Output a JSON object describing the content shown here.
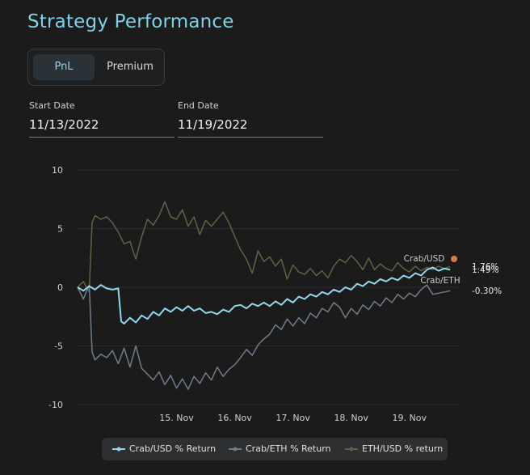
{
  "title": "Strategy Performance",
  "toggle": {
    "options": [
      "PnL",
      "Premium"
    ],
    "selected": "PnL"
  },
  "start_date": {
    "label": "Start Date",
    "value": "11/13/2022"
  },
  "end_date": {
    "label": "End Date",
    "value": "11/19/2022"
  },
  "end_labels": {
    "crab_usd_name": "Crab/USD",
    "crab_eth_name": "Crab/ETH"
  },
  "chart_data": {
    "type": "line",
    "x_tick_labels": [
      "15. Nov",
      "16. Nov",
      "17. Nov",
      "18. Nov",
      "19. Nov"
    ],
    "x_tick_positions_days": [
      1,
      2,
      3,
      4,
      5
    ],
    "x_range_days": [
      -0.7,
      5.85
    ],
    "y_ticks": [
      10,
      5,
      0,
      -5,
      -10
    ],
    "ylim": [
      -10,
      10
    ],
    "grid": true,
    "legend_placement": "bottom",
    "end_value_labels": [
      "1.76%",
      "1.49%",
      "-0.30%"
    ],
    "series": [
      {
        "name": "Crab/USD % Return",
        "color": "#8fd8ee",
        "points": [
          [
            -0.7,
            0
          ],
          [
            -0.6,
            -0.3
          ],
          [
            -0.5,
            0.1
          ],
          [
            -0.4,
            -0.2
          ],
          [
            -0.3,
            0.2
          ],
          [
            -0.2,
            -0.1
          ],
          [
            -0.1,
            -0.2
          ],
          [
            0.0,
            -0.1
          ],
          [
            0.05,
            -2.9
          ],
          [
            0.1,
            -3.1
          ],
          [
            0.2,
            -2.6
          ],
          [
            0.3,
            -3.0
          ],
          [
            0.4,
            -2.4
          ],
          [
            0.5,
            -2.7
          ],
          [
            0.6,
            -2.1
          ],
          [
            0.7,
            -2.4
          ],
          [
            0.8,
            -1.8
          ],
          [
            0.9,
            -2.1
          ],
          [
            1.0,
            -1.7
          ],
          [
            1.1,
            -2.0
          ],
          [
            1.2,
            -1.6
          ],
          [
            1.3,
            -2.0
          ],
          [
            1.4,
            -1.8
          ],
          [
            1.5,
            -2.2
          ],
          [
            1.6,
            -2.1
          ],
          [
            1.7,
            -2.3
          ],
          [
            1.8,
            -1.9
          ],
          [
            1.9,
            -2.1
          ],
          [
            2.0,
            -1.6
          ],
          [
            2.1,
            -1.5
          ],
          [
            2.2,
            -1.8
          ],
          [
            2.3,
            -1.4
          ],
          [
            2.4,
            -1.6
          ],
          [
            2.5,
            -1.3
          ],
          [
            2.6,
            -1.6
          ],
          [
            2.7,
            -1.2
          ],
          [
            2.8,
            -1.5
          ],
          [
            2.9,
            -1.0
          ],
          [
            3.0,
            -1.3
          ],
          [
            3.1,
            -0.8
          ],
          [
            3.2,
            -1.0
          ],
          [
            3.3,
            -0.6
          ],
          [
            3.4,
            -0.8
          ],
          [
            3.5,
            -0.4
          ],
          [
            3.6,
            -0.6
          ],
          [
            3.7,
            -0.2
          ],
          [
            3.8,
            -0.4
          ],
          [
            3.9,
            0.0
          ],
          [
            4.0,
            -0.2
          ],
          [
            4.1,
            0.3
          ],
          [
            4.2,
            0.1
          ],
          [
            4.3,
            0.5
          ],
          [
            4.4,
            0.3
          ],
          [
            4.5,
            0.7
          ],
          [
            4.6,
            0.5
          ],
          [
            4.7,
            0.8
          ],
          [
            4.8,
            0.6
          ],
          [
            4.9,
            1.0
          ],
          [
            5.0,
            0.8
          ],
          [
            5.1,
            1.2
          ],
          [
            5.2,
            1.0
          ],
          [
            5.3,
            1.5
          ],
          [
            5.4,
            1.7
          ],
          [
            5.5,
            1.4
          ],
          [
            5.6,
            1.6
          ],
          [
            5.7,
            1.49
          ]
        ]
      },
      {
        "name": "Crab/ETH % Return",
        "color": "#6e7c8c",
        "points": [
          [
            -0.7,
            0
          ],
          [
            -0.6,
            -1.0
          ],
          [
            -0.5,
            0.2
          ],
          [
            -0.45,
            -5.5
          ],
          [
            -0.4,
            -6.2
          ],
          [
            -0.3,
            -5.7
          ],
          [
            -0.2,
            -6.0
          ],
          [
            -0.1,
            -5.4
          ],
          [
            0.0,
            -6.5
          ],
          [
            0.1,
            -5.2
          ],
          [
            0.2,
            -6.8
          ],
          [
            0.3,
            -5.0
          ],
          [
            0.4,
            -6.9
          ],
          [
            0.5,
            -7.4
          ],
          [
            0.6,
            -7.9
          ],
          [
            0.7,
            -7.2
          ],
          [
            0.8,
            -8.3
          ],
          [
            0.9,
            -7.5
          ],
          [
            1.0,
            -8.6
          ],
          [
            1.1,
            -7.8
          ],
          [
            1.2,
            -8.7
          ],
          [
            1.3,
            -7.6
          ],
          [
            1.4,
            -8.2
          ],
          [
            1.5,
            -7.3
          ],
          [
            1.6,
            -7.9
          ],
          [
            1.7,
            -6.8
          ],
          [
            1.8,
            -7.6
          ],
          [
            1.9,
            -7.0
          ],
          [
            2.0,
            -6.6
          ],
          [
            2.1,
            -6.0
          ],
          [
            2.2,
            -5.3
          ],
          [
            2.3,
            -5.8
          ],
          [
            2.4,
            -4.9
          ],
          [
            2.5,
            -4.4
          ],
          [
            2.6,
            -4.0
          ],
          [
            2.7,
            -3.2
          ],
          [
            2.8,
            -3.6
          ],
          [
            2.9,
            -2.7
          ],
          [
            3.0,
            -3.3
          ],
          [
            3.1,
            -2.6
          ],
          [
            3.2,
            -3.1
          ],
          [
            3.3,
            -2.2
          ],
          [
            3.4,
            -2.6
          ],
          [
            3.5,
            -1.8
          ],
          [
            3.6,
            -2.1
          ],
          [
            3.7,
            -1.3
          ],
          [
            3.8,
            -1.7
          ],
          [
            3.9,
            -2.6
          ],
          [
            4.0,
            -1.8
          ],
          [
            4.1,
            -2.3
          ],
          [
            4.2,
            -1.5
          ],
          [
            4.3,
            -1.9
          ],
          [
            4.4,
            -1.2
          ],
          [
            4.5,
            -1.6
          ],
          [
            4.6,
            -0.9
          ],
          [
            4.7,
            -1.3
          ],
          [
            4.8,
            -0.6
          ],
          [
            4.9,
            -1.0
          ],
          [
            5.0,
            -0.5
          ],
          [
            5.1,
            -0.8
          ],
          [
            5.2,
            -0.2
          ],
          [
            5.3,
            0.2
          ],
          [
            5.4,
            -0.6
          ],
          [
            5.5,
            -0.5
          ],
          [
            5.6,
            -0.4
          ],
          [
            5.7,
            -0.3
          ]
        ]
      },
      {
        "name": "ETH/USD % return",
        "color": "#5d6345",
        "points": [
          [
            -0.7,
            0
          ],
          [
            -0.6,
            0.5
          ],
          [
            -0.5,
            -0.4
          ],
          [
            -0.45,
            5.5
          ],
          [
            -0.4,
            6.1
          ],
          [
            -0.3,
            5.8
          ],
          [
            -0.2,
            6.0
          ],
          [
            -0.1,
            5.5
          ],
          [
            0.0,
            4.7
          ],
          [
            0.1,
            3.7
          ],
          [
            0.2,
            3.9
          ],
          [
            0.3,
            2.4
          ],
          [
            0.4,
            4.3
          ],
          [
            0.5,
            5.8
          ],
          [
            0.6,
            5.3
          ],
          [
            0.7,
            6.1
          ],
          [
            0.8,
            7.3
          ],
          [
            0.9,
            6.0
          ],
          [
            1.0,
            5.8
          ],
          [
            1.1,
            6.6
          ],
          [
            1.2,
            5.2
          ],
          [
            1.3,
            6.0
          ],
          [
            1.4,
            4.5
          ],
          [
            1.5,
            5.7
          ],
          [
            1.6,
            5.2
          ],
          [
            1.7,
            5.8
          ],
          [
            1.8,
            6.4
          ],
          [
            1.9,
            5.5
          ],
          [
            2.0,
            4.3
          ],
          [
            2.1,
            3.2
          ],
          [
            2.2,
            2.4
          ],
          [
            2.3,
            1.2
          ],
          [
            2.4,
            3.1
          ],
          [
            2.5,
            2.2
          ],
          [
            2.6,
            2.6
          ],
          [
            2.7,
            1.8
          ],
          [
            2.8,
            2.4
          ],
          [
            2.9,
            0.7
          ],
          [
            3.0,
            1.9
          ],
          [
            3.1,
            1.3
          ],
          [
            3.2,
            1.1
          ],
          [
            3.3,
            1.6
          ],
          [
            3.4,
            1.0
          ],
          [
            3.5,
            1.4
          ],
          [
            3.6,
            0.8
          ],
          [
            3.7,
            1.8
          ],
          [
            3.8,
            2.4
          ],
          [
            3.9,
            2.1
          ],
          [
            4.0,
            2.7
          ],
          [
            4.1,
            2.2
          ],
          [
            4.2,
            1.5
          ],
          [
            4.3,
            2.5
          ],
          [
            4.4,
            1.5
          ],
          [
            4.5,
            2.0
          ],
          [
            4.6,
            1.6
          ],
          [
            4.7,
            1.4
          ],
          [
            4.8,
            2.1
          ],
          [
            4.9,
            1.6
          ],
          [
            5.0,
            1.3
          ],
          [
            5.1,
            1.8
          ],
          [
            5.2,
            1.4
          ],
          [
            5.3,
            1.7
          ],
          [
            5.4,
            1.5
          ],
          [
            5.5,
            1.8
          ],
          [
            5.6,
            1.6
          ],
          [
            5.7,
            1.76
          ]
        ]
      }
    ]
  }
}
